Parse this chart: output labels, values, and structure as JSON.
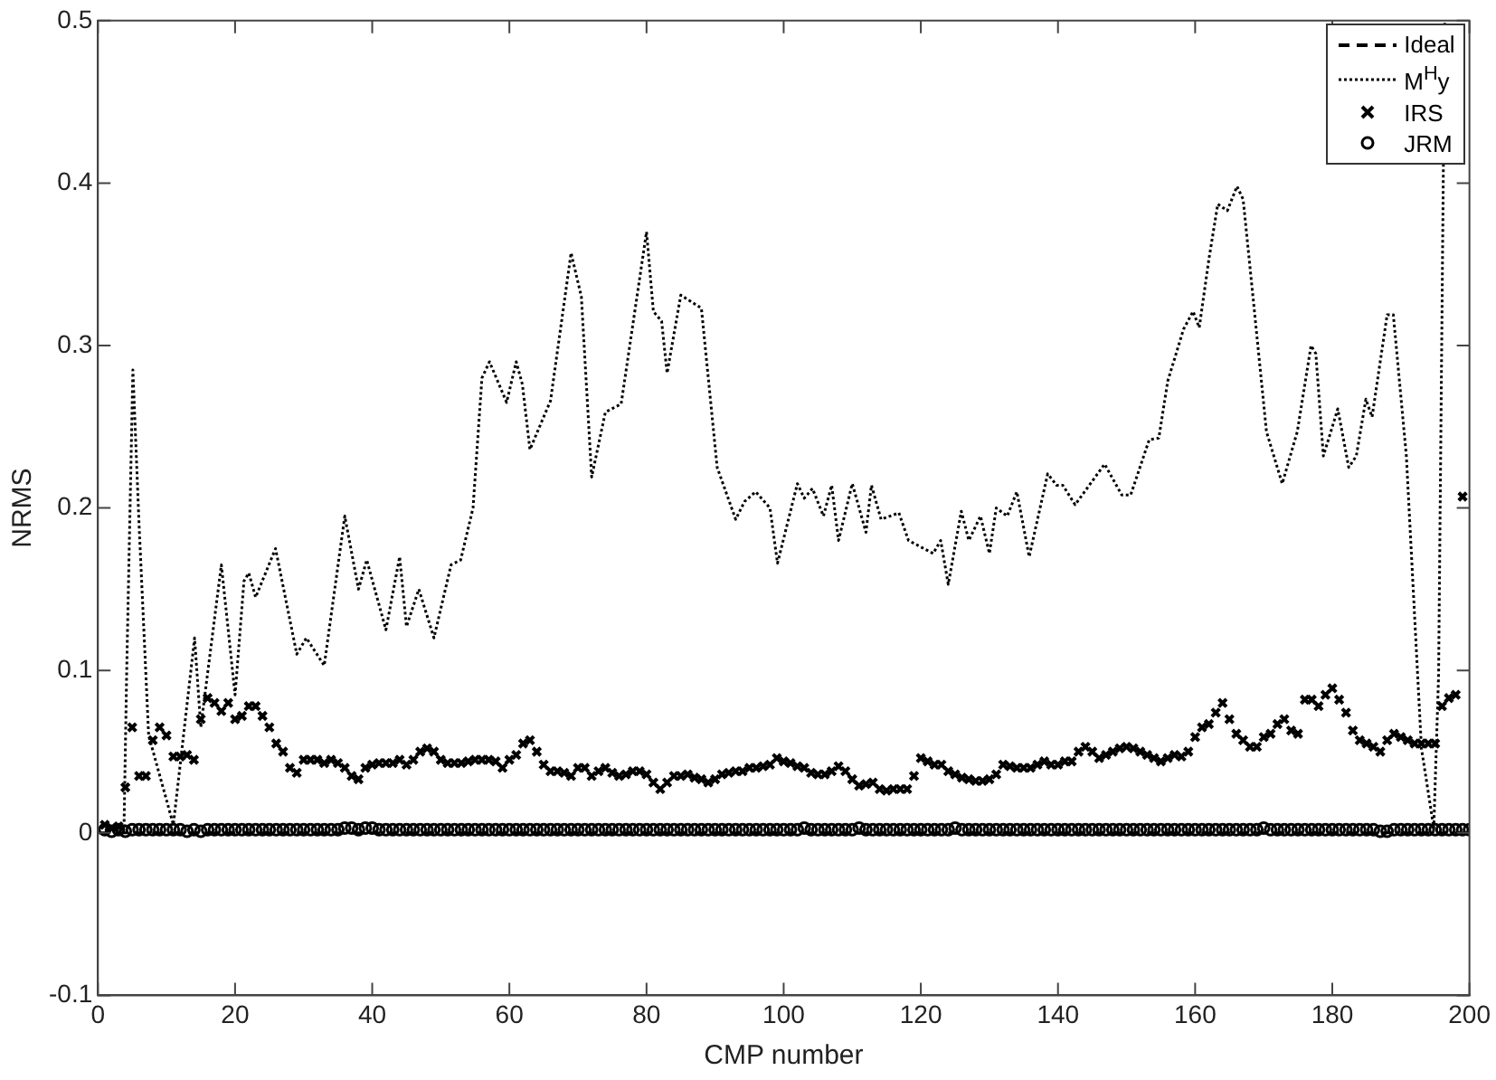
{
  "chart_data": {
    "type": "line",
    "xlabel": "CMP number",
    "ylabel": "NRMS",
    "xlim": [
      0,
      200
    ],
    "xticks": [
      0,
      20,
      40,
      60,
      80,
      100,
      120,
      140,
      160,
      180,
      200
    ],
    "ylim": [
      -0.1,
      0.5
    ],
    "yticks": [
      -0.1,
      0,
      0.1,
      0.2,
      0.3,
      0.4,
      0.5
    ],
    "grid": false,
    "legend": "top right",
    "series": [
      {
        "name": "Ideal",
        "type": "line",
        "color": "#000000",
        "line_style": "dashed",
        "marker": "none",
        "x": [
          0,
          200
        ],
        "values": [
          0,
          0
        ]
      },
      {
        "name": "M$^{H}$y",
        "type": "line",
        "color": "#000000",
        "line_style": "dotted",
        "marker": "none",
        "x": [
          1,
          3.8,
          4.2,
          5.1,
          6,
          7.4,
          11,
          14.1,
          15,
          18,
          20,
          21.3,
          22,
          23,
          25.9,
          29,
          30.4,
          33,
          36,
          38,
          39.2,
          42,
          44,
          45,
          46.8,
          49,
          51.5,
          52.9,
          54.7,
          56,
          57.1,
          59.6,
          61,
          61.9,
          63,
          66,
          69,
          70.5,
          72,
          74,
          76.3,
          80,
          81,
          82.2,
          83,
          85,
          88,
          90.3,
          93,
          94.3,
          95.9,
          98,
          99.1,
          102,
          103,
          104.2,
          105.8,
          107,
          108,
          110,
          112,
          112.8,
          114.2,
          116.8,
          118.2,
          121.8,
          122.9,
          124,
          125.9,
          127,
          128.7,
          130,
          131,
          132.6,
          134,
          135.8,
          138.5,
          139.8,
          140.7,
          142.5,
          146.8,
          149.3,
          150.6,
          153.3,
          154.7,
          156,
          158.3,
          159.7,
          160.6,
          162,
          163.3,
          164.7,
          166.1,
          167,
          168.6,
          170.4,
          172.7,
          174.9,
          176.9,
          177.6,
          178.7,
          180.8,
          182.4,
          183.5,
          184.9,
          185.8,
          188,
          188.9,
          190.8,
          193,
          194.8,
          195.5,
          196.4
        ],
        "values": [
          0.002,
          0.002,
          0.1,
          0.285,
          0.19,
          0.06,
          0.005,
          0.12,
          0.065,
          0.165,
          0.085,
          0.155,
          0.16,
          0.145,
          0.175,
          0.11,
          0.12,
          0.103,
          0.195,
          0.15,
          0.168,
          0.125,
          0.17,
          0.127,
          0.15,
          0.12,
          0.165,
          0.168,
          0.2,
          0.28,
          0.29,
          0.265,
          0.29,
          0.276,
          0.236,
          0.266,
          0.357,
          0.33,
          0.219,
          0.259,
          0.264,
          0.37,
          0.321,
          0.315,
          0.283,
          0.331,
          0.323,
          0.225,
          0.193,
          0.204,
          0.21,
          0.2,
          0.166,
          0.215,
          0.206,
          0.212,
          0.195,
          0.214,
          0.18,
          0.215,
          0.185,
          0.214,
          0.193,
          0.197,
          0.18,
          0.172,
          0.18,
          0.153,
          0.198,
          0.18,
          0.195,
          0.172,
          0.2,
          0.195,
          0.21,
          0.17,
          0.221,
          0.214,
          0.214,
          0.202,
          0.227,
          0.208,
          0.208,
          0.242,
          0.243,
          0.278,
          0.31,
          0.321,
          0.311,
          0.353,
          0.387,
          0.383,
          0.398,
          0.39,
          0.323,
          0.247,
          0.215,
          0.247,
          0.3,
          0.295,
          0.232,
          0.261,
          0.225,
          0.232,
          0.267,
          0.256,
          0.319,
          0.319,
          0.232,
          0.052,
          0.003,
          0.097,
          0.5
        ]
      },
      {
        "name": "IRS",
        "type": "scatter",
        "color": "#000000",
        "marker": "cross",
        "values": [
          0.005,
          0.003,
          0.004,
          0.028,
          0.065,
          0.035,
          0.035,
          0.057,
          0.065,
          0.06,
          0.047,
          0.047,
          0.048,
          0.045,
          0.07,
          0.083,
          0.08,
          0.075,
          0.08,
          0.07,
          0.072,
          0.078,
          0.078,
          0.072,
          0.065,
          0.055,
          0.05,
          0.04,
          0.037,
          0.045,
          0.045,
          0.045,
          0.043,
          0.045,
          0.043,
          0.04,
          0.035,
          0.033,
          0.04,
          0.042,
          0.043,
          0.043,
          0.043,
          0.045,
          0.042,
          0.045,
          0.05,
          0.052,
          0.05,
          0.045,
          0.043,
          0.043,
          0.043,
          0.044,
          0.045,
          0.045,
          0.045,
          0.044,
          0.04,
          0.045,
          0.048,
          0.055,
          0.057,
          0.05,
          0.042,
          0.038,
          0.038,
          0.037,
          0.035,
          0.04,
          0.04,
          0.035,
          0.038,
          0.04,
          0.037,
          0.035,
          0.036,
          0.038,
          0.038,
          0.036,
          0.031,
          0.027,
          0.031,
          0.035,
          0.035,
          0.036,
          0.034,
          0.033,
          0.031,
          0.033,
          0.036,
          0.037,
          0.038,
          0.038,
          0.04,
          0.04,
          0.041,
          0.042,
          0.046,
          0.044,
          0.043,
          0.041,
          0.04,
          0.037,
          0.036,
          0.036,
          0.038,
          0.041,
          0.038,
          0.033,
          0.029,
          0.03,
          0.031,
          0.027,
          0.026,
          0.027,
          0.027,
          0.027,
          0.035,
          0.046,
          0.044,
          0.042,
          0.042,
          0.038,
          0.036,
          0.034,
          0.033,
          0.032,
          0.032,
          0.033,
          0.036,
          0.042,
          0.041,
          0.04,
          0.04,
          0.04,
          0.042,
          0.044,
          0.042,
          0.042,
          0.044,
          0.044,
          0.05,
          0.053,
          0.05,
          0.046,
          0.048,
          0.05,
          0.052,
          0.053,
          0.052,
          0.05,
          0.048,
          0.046,
          0.044,
          0.046,
          0.048,
          0.047,
          0.05,
          0.059,
          0.065,
          0.067,
          0.074,
          0.08,
          0.07,
          0.061,
          0.057,
          0.053,
          0.053,
          0.059,
          0.061,
          0.067,
          0.07,
          0.063,
          0.061,
          0.082,
          0.082,
          0.078,
          0.085,
          0.089,
          0.082,
          0.074,
          0.063,
          0.057,
          0.055,
          0.053,
          0.05,
          0.057,
          0.061,
          0.059,
          0.057,
          0.055,
          0.055,
          0.055,
          0.055,
          0.078,
          0.083,
          0.085,
          0.207,
          null
        ]
      },
      {
        "name": "JRM",
        "type": "scatter",
        "color": "#000000",
        "marker": "circle",
        "values": [
          0.002,
          0.001,
          0.002,
          0.001,
          0.002,
          0.002,
          0.002,
          0.002,
          0.002,
          0.002,
          0.002,
          0.002,
          0.001,
          0.002,
          0.001,
          0.002,
          0.002,
          0.002,
          0.002,
          0.002,
          0.002,
          0.002,
          0.002,
          0.002,
          0.002,
          0.002,
          0.002,
          0.002,
          0.002,
          0.002,
          0.002,
          0.002,
          0.002,
          0.002,
          0.002,
          0.003,
          0.003,
          0.002,
          0.003,
          0.003,
          0.002,
          0.002,
          0.002,
          0.002,
          0.002,
          0.002,
          0.002,
          0.002,
          0.002,
          0.002,
          0.002,
          0.002,
          0.002,
          0.002,
          0.002,
          0.002,
          0.002,
          0.002,
          0.002,
          0.002,
          0.002,
          0.002,
          0.002,
          0.002,
          0.002,
          0.002,
          0.002,
          0.002,
          0.002,
          0.002,
          0.002,
          0.002,
          0.002,
          0.002,
          0.002,
          0.002,
          0.002,
          0.002,
          0.002,
          0.002,
          0.002,
          0.002,
          0.002,
          0.002,
          0.002,
          0.002,
          0.002,
          0.002,
          0.002,
          0.002,
          0.002,
          0.002,
          0.002,
          0.002,
          0.002,
          0.002,
          0.002,
          0.002,
          0.002,
          0.002,
          0.002,
          0.002,
          0.003,
          0.002,
          0.002,
          0.002,
          0.002,
          0.002,
          0.002,
          0.002,
          0.003,
          0.002,
          0.002,
          0.002,
          0.002,
          0.002,
          0.002,
          0.002,
          0.002,
          0.002,
          0.002,
          0.002,
          0.002,
          0.002,
          0.003,
          0.002,
          0.002,
          0.002,
          0.002,
          0.002,
          0.002,
          0.002,
          0.002,
          0.002,
          0.002,
          0.002,
          0.002,
          0.002,
          0.002,
          0.002,
          0.002,
          0.002,
          0.002,
          0.002,
          0.002,
          0.002,
          0.002,
          0.002,
          0.002,
          0.002,
          0.002,
          0.002,
          0.002,
          0.002,
          0.002,
          0.002,
          0.002,
          0.002,
          0.002,
          0.002,
          0.002,
          0.002,
          0.002,
          0.002,
          0.002,
          0.002,
          0.002,
          0.002,
          0.002,
          0.003,
          0.002,
          0.002,
          0.002,
          0.002,
          0.002,
          0.002,
          0.002,
          0.002,
          0.002,
          0.002,
          0.002,
          0.002,
          0.002,
          0.002,
          0.002,
          0.002,
          0.001,
          0.001,
          0.002,
          0.002,
          0.002,
          0.002,
          0.002,
          0.002,
          0.002,
          0.002,
          0.002,
          0.002,
          0.002,
          0.002
        ]
      }
    ],
    "x": [
      1,
      2,
      3,
      4,
      5,
      6,
      7,
      8,
      9,
      10,
      11,
      12,
      13,
      14,
      15,
      16,
      17,
      18,
      19,
      20,
      21,
      22,
      23,
      24,
      25,
      26,
      27,
      28,
      29,
      30,
      31,
      32,
      33,
      34,
      35,
      36,
      37,
      38,
      39,
      40,
      41,
      42,
      43,
      44,
      45,
      46,
      47,
      48,
      49,
      50,
      51,
      52,
      53,
      54,
      55,
      56,
      57,
      58,
      59,
      60,
      61,
      62,
      63,
      64,
      65,
      66,
      67,
      68,
      69,
      70,
      71,
      72,
      73,
      74,
      75,
      76,
      77,
      78,
      79,
      80,
      81,
      82,
      83,
      84,
      85,
      86,
      87,
      88,
      89,
      90,
      91,
      92,
      93,
      94,
      95,
      96,
      97,
      98,
      99,
      100,
      101,
      102,
      103,
      104,
      105,
      106,
      107,
      108,
      109,
      110,
      111,
      112,
      113,
      114,
      115,
      116,
      117,
      118,
      119,
      120,
      121,
      122,
      123,
      124,
      125,
      126,
      127,
      128,
      129,
      130,
      131,
      132,
      133,
      134,
      135,
      136,
      137,
      138,
      139,
      140,
      141,
      142,
      143,
      144,
      145,
      146,
      147,
      148,
      149,
      150,
      151,
      152,
      153,
      154,
      155,
      156,
      157,
      158,
      159,
      160,
      161,
      162,
      163,
      164,
      165,
      166,
      167,
      168,
      169,
      170,
      171,
      172,
      173,
      174,
      175,
      176,
      177,
      178,
      179,
      180,
      181,
      182,
      183,
      184,
      185,
      186,
      187,
      188,
      189,
      190,
      191,
      192,
      193,
      194,
      195,
      196,
      197,
      198,
      199,
      200
    ]
  }
}
